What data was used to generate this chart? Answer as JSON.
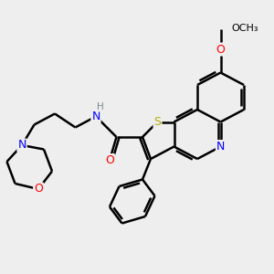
{
  "bg_color": "#eeeeee",
  "atom_colors": {
    "O": "#ff0000",
    "N": "#0000ff",
    "S": "#bbaa00",
    "C": "#000000",
    "H": "#778888"
  },
  "bond_color": "#000000",
  "bond_width": 1.8,
  "fig_size": [
    3.0,
    3.0
  ],
  "dpi": 100
}
